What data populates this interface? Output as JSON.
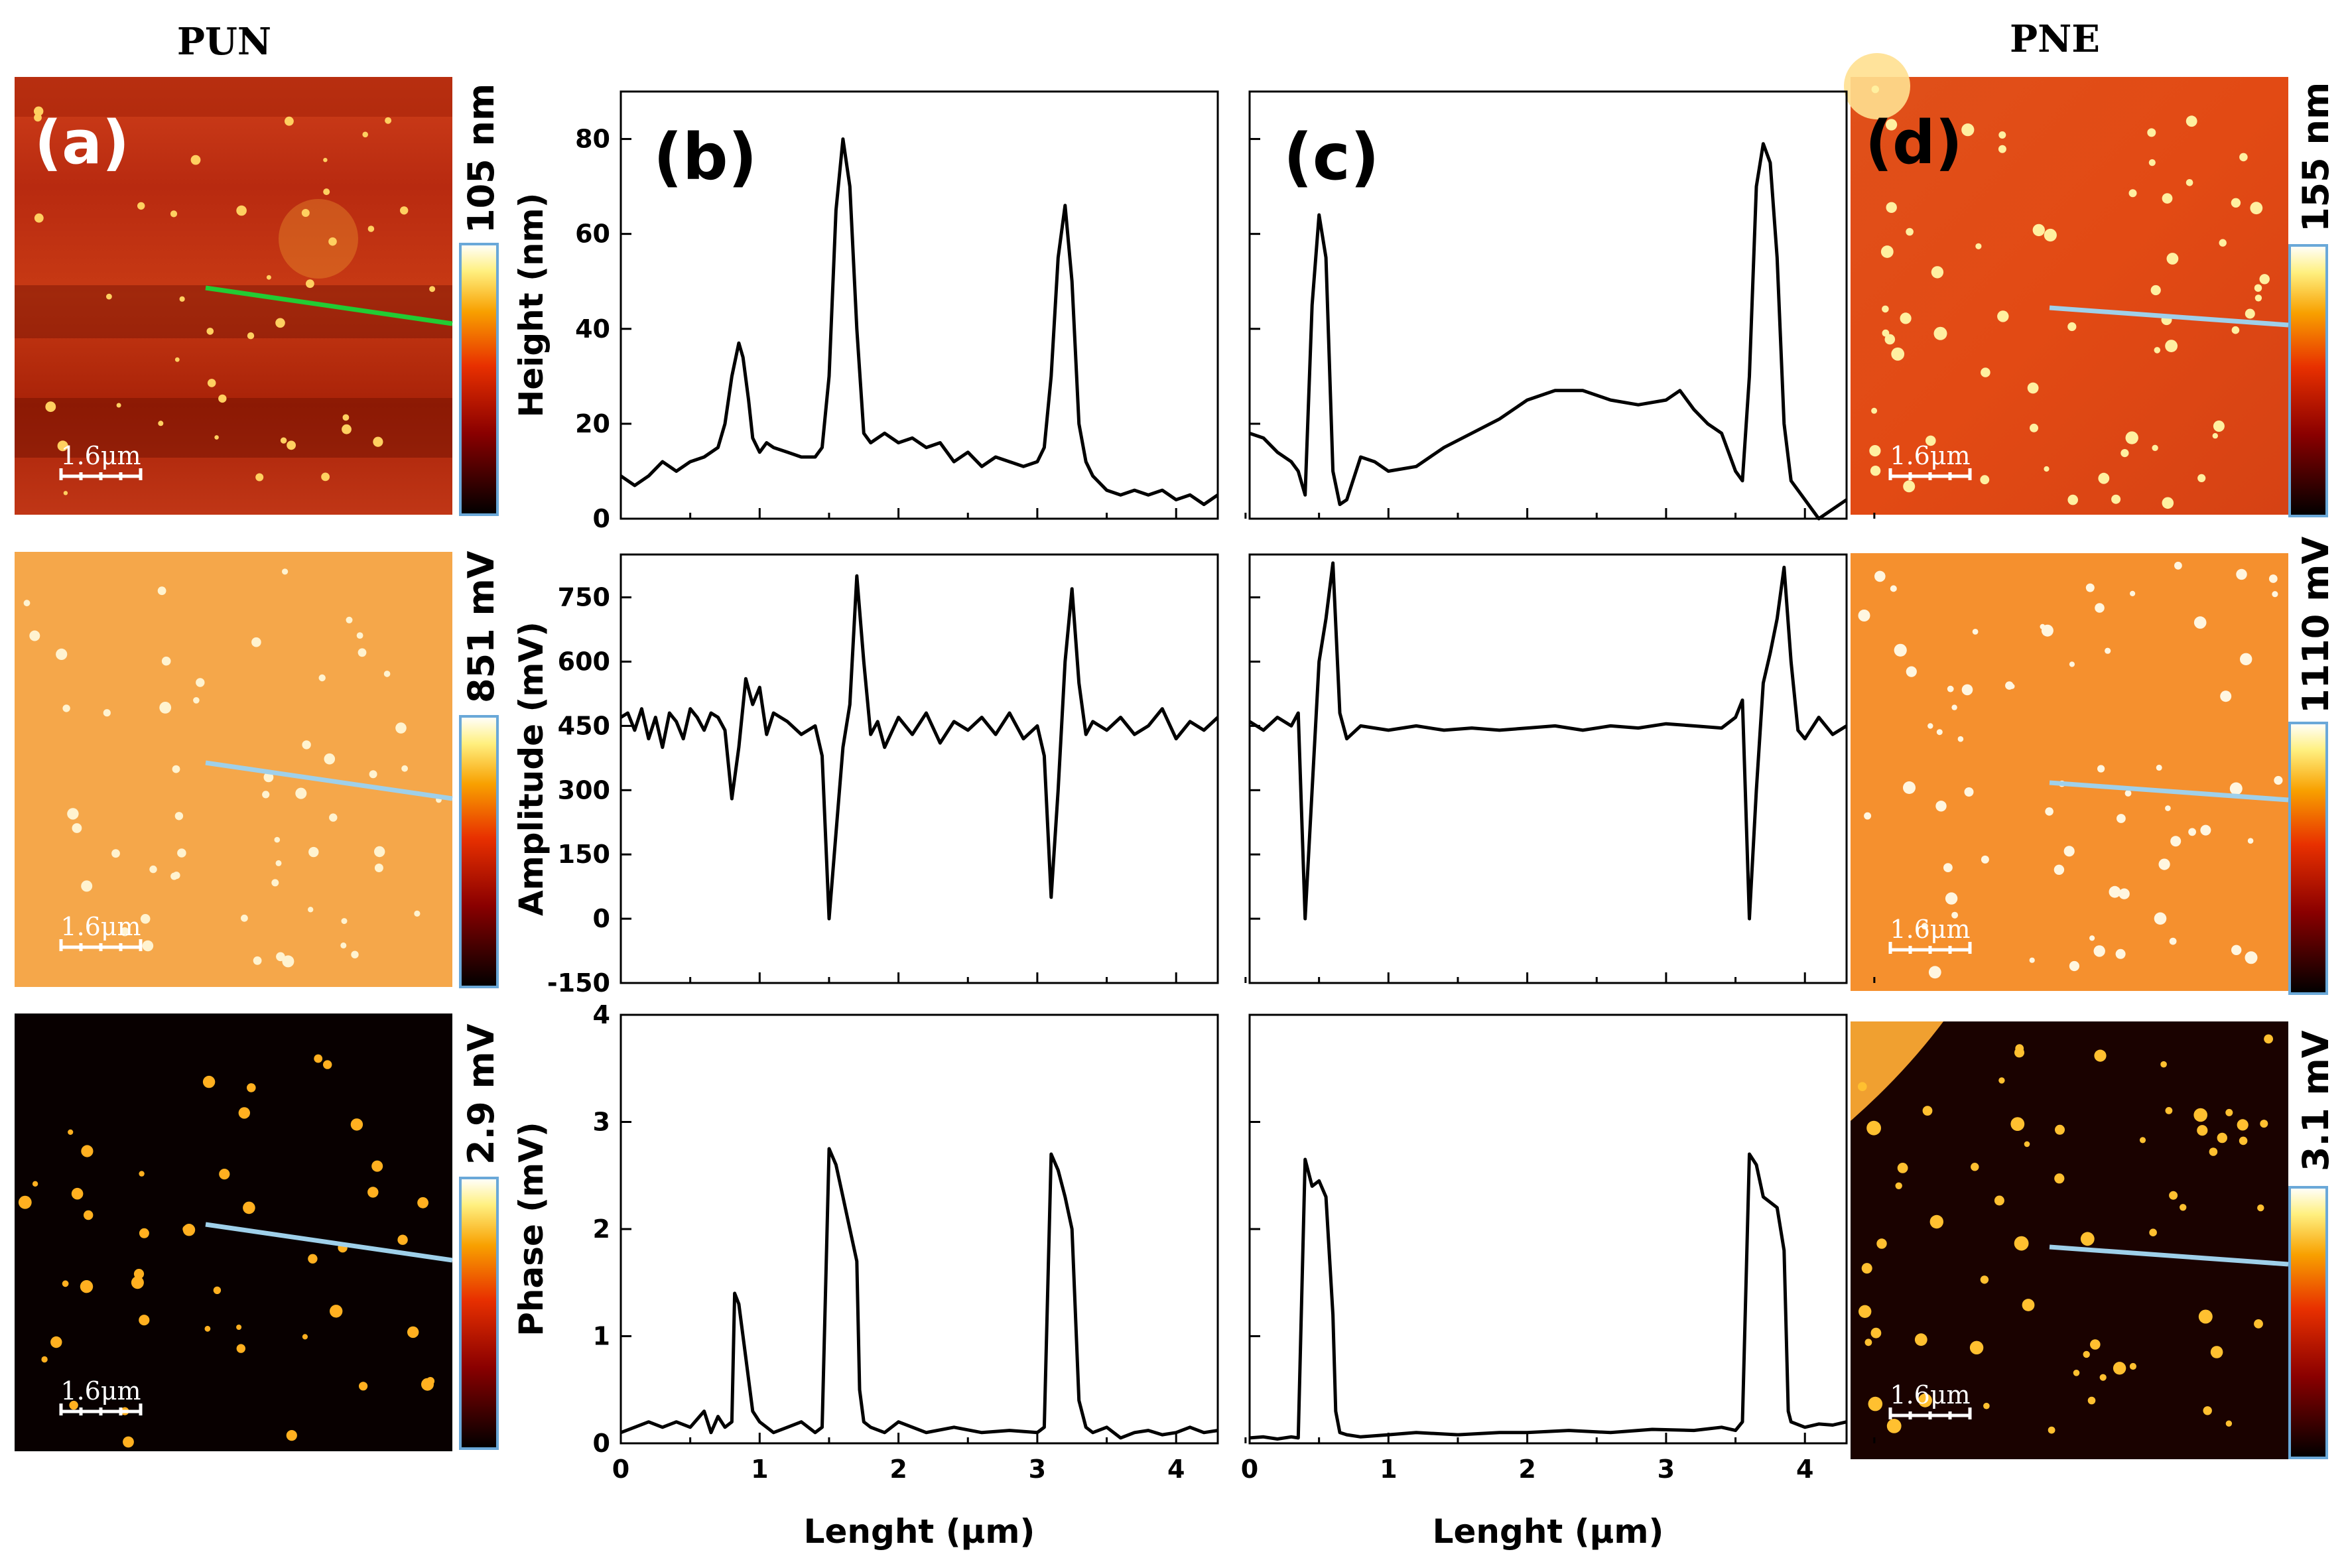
{
  "figure": {
    "pun_title": "PUN",
    "pne_title": "PNE"
  },
  "images": {
    "left": [
      {
        "panel_label": "(a)",
        "colorbar_label": "105 nm",
        "scale_bar": "1.6μm",
        "line_color": "#22cc33"
      },
      {
        "panel_label": "",
        "colorbar_label": "851 mV",
        "scale_bar": "1.6μm",
        "line_color": "#9fd0ea"
      },
      {
        "panel_label": "",
        "colorbar_label": "2.9 mV",
        "scale_bar": "1.6μm",
        "line_color": "#9fd0ea"
      }
    ],
    "right": [
      {
        "panel_label": "(d)",
        "colorbar_label": "155 nm",
        "scale_bar": "1.6μm",
        "line_color": "#9fd0ea"
      },
      {
        "panel_label": "",
        "colorbar_label": "1110 mV",
        "scale_bar": "1.6μm",
        "line_color": "#9fd0ea"
      },
      {
        "panel_label": "",
        "colorbar_label": "3.1 mV",
        "scale_bar": "1.6μm",
        "line_color": "#9fd0ea"
      }
    ]
  },
  "chart_data": [
    {
      "type": "line",
      "panel_label": "(b)",
      "title": "",
      "xlabel": "",
      "ylabel": "Height (nm)",
      "xlim": [
        0,
        4.3
      ],
      "ylim": [
        0,
        90
      ],
      "xticks": [
        0,
        1,
        2,
        3,
        4
      ],
      "yticks": [
        0,
        20,
        40,
        60,
        80
      ],
      "show_xtick_labels": false,
      "x": [
        0,
        0.1,
        0.2,
        0.3,
        0.4,
        0.5,
        0.6,
        0.7,
        0.75,
        0.8,
        0.85,
        0.88,
        0.92,
        0.95,
        1.0,
        1.05,
        1.1,
        1.2,
        1.3,
        1.4,
        1.45,
        1.5,
        1.55,
        1.6,
        1.65,
        1.7,
        1.75,
        1.8,
        1.9,
        2.0,
        2.1,
        2.2,
        2.3,
        2.4,
        2.5,
        2.6,
        2.7,
        2.8,
        2.9,
        3.0,
        3.05,
        3.1,
        3.15,
        3.2,
        3.25,
        3.3,
        3.35,
        3.4,
        3.5,
        3.6,
        3.7,
        3.8,
        3.9,
        4.0,
        4.1,
        4.2,
        4.3
      ],
      "y": [
        9,
        7,
        9,
        12,
        10,
        12,
        13,
        15,
        20,
        30,
        37,
        34,
        25,
        17,
        14,
        16,
        15,
        14,
        13,
        13,
        15,
        30,
        65,
        80,
        70,
        40,
        18,
        16,
        18,
        16,
        17,
        15,
        16,
        12,
        14,
        11,
        13,
        12,
        11,
        12,
        15,
        30,
        55,
        66,
        50,
        20,
        12,
        9,
        6,
        5,
        6,
        5,
        6,
        4,
        5,
        3,
        5
      ]
    },
    {
      "type": "line",
      "panel_label": "(c)",
      "title": "",
      "xlabel": "",
      "ylabel": "",
      "xlim": [
        0,
        4.3
      ],
      "ylim": [
        0,
        90
      ],
      "xticks": [
        0,
        1,
        2,
        3,
        4
      ],
      "yticks": [
        0,
        20,
        40,
        60,
        80
      ],
      "show_xtick_labels": false,
      "x": [
        0,
        0.1,
        0.2,
        0.3,
        0.35,
        0.4,
        0.45,
        0.5,
        0.55,
        0.6,
        0.65,
        0.7,
        0.8,
        0.9,
        1.0,
        1.2,
        1.4,
        1.6,
        1.8,
        2.0,
        2.2,
        2.4,
        2.6,
        2.8,
        3.0,
        3.1,
        3.2,
        3.3,
        3.4,
        3.5,
        3.55,
        3.6,
        3.65,
        3.7,
        3.75,
        3.8,
        3.85,
        3.9,
        4.0,
        4.1,
        4.2,
        4.3
      ],
      "y": [
        18,
        17,
        14,
        12,
        10,
        5,
        45,
        64,
        55,
        10,
        3,
        4,
        13,
        12,
        10,
        11,
        15,
        18,
        21,
        25,
        27,
        27,
        25,
        24,
        25,
        27,
        23,
        20,
        18,
        10,
        8,
        30,
        70,
        79,
        75,
        55,
        20,
        8,
        4,
        0,
        2,
        4
      ]
    },
    {
      "type": "line",
      "panel_label": "",
      "title": "",
      "xlabel": "",
      "ylabel": "Amplitude (mV)",
      "xlim": [
        0,
        4.3
      ],
      "ylim": [
        -150,
        850
      ],
      "xticks": [
        0,
        1,
        2,
        3,
        4
      ],
      "yticks": [
        -150,
        0,
        150,
        300,
        450,
        600,
        750
      ],
      "show_xtick_labels": false,
      "x": [
        0,
        0.05,
        0.1,
        0.15,
        0.2,
        0.25,
        0.3,
        0.35,
        0.4,
        0.45,
        0.5,
        0.55,
        0.6,
        0.65,
        0.7,
        0.75,
        0.8,
        0.85,
        0.9,
        0.95,
        1.0,
        1.05,
        1.1,
        1.2,
        1.3,
        1.4,
        1.45,
        1.5,
        1.55,
        1.6,
        1.65,
        1.7,
        1.75,
        1.8,
        1.85,
        1.9,
        2.0,
        2.1,
        2.2,
        2.3,
        2.4,
        2.5,
        2.6,
        2.7,
        2.8,
        2.9,
        3.0,
        3.05,
        3.1,
        3.15,
        3.2,
        3.25,
        3.3,
        3.35,
        3.4,
        3.5,
        3.6,
        3.7,
        3.8,
        3.9,
        4.0,
        4.1,
        4.2,
        4.3
      ],
      "y": [
        470,
        480,
        440,
        490,
        420,
        470,
        400,
        480,
        460,
        420,
        490,
        470,
        440,
        480,
        470,
        440,
        280,
        400,
        560,
        500,
        540,
        430,
        480,
        460,
        430,
        450,
        380,
        0,
        200,
        400,
        500,
        800,
        600,
        430,
        460,
        400,
        470,
        430,
        480,
        410,
        460,
        440,
        470,
        430,
        480,
        420,
        450,
        380,
        50,
        300,
        600,
        770,
        550,
        430,
        460,
        440,
        470,
        430,
        450,
        490,
        420,
        460,
        440,
        470
      ]
    },
    {
      "type": "line",
      "panel_label": "",
      "title": "",
      "xlabel": "",
      "ylabel": "",
      "xlim": [
        0,
        4.3
      ],
      "ylim": [
        -150,
        850
      ],
      "xticks": [
        0,
        1,
        2,
        3,
        4
      ],
      "yticks": [
        -150,
        0,
        150,
        300,
        450,
        600,
        750
      ],
      "show_xtick_labels": false,
      "x": [
        0,
        0.1,
        0.2,
        0.3,
        0.35,
        0.4,
        0.45,
        0.5,
        0.55,
        0.6,
        0.65,
        0.7,
        0.8,
        1.0,
        1.2,
        1.4,
        1.6,
        1.8,
        2.0,
        2.2,
        2.4,
        2.6,
        2.8,
        3.0,
        3.2,
        3.4,
        3.5,
        3.55,
        3.6,
        3.65,
        3.7,
        3.75,
        3.8,
        3.85,
        3.9,
        3.95,
        4.0,
        4.1,
        4.2,
        4.3
      ],
      "y": [
        460,
        440,
        470,
        450,
        480,
        0,
        300,
        600,
        700,
        830,
        480,
        420,
        450,
        440,
        450,
        440,
        445,
        440,
        445,
        450,
        440,
        450,
        445,
        455,
        450,
        445,
        470,
        510,
        0,
        300,
        550,
        620,
        700,
        820,
        600,
        440,
        420,
        470,
        430,
        450
      ]
    },
    {
      "type": "line",
      "panel_label": "",
      "title": "",
      "xlabel": "Lenght (μm)",
      "ylabel": "Phase (mV)",
      "xlim": [
        0,
        4.3
      ],
      "ylim": [
        0,
        4
      ],
      "xticks": [
        0,
        1,
        2,
        3,
        4
      ],
      "yticks": [
        0,
        1,
        2,
        3,
        4
      ],
      "show_xtick_labels": true,
      "x": [
        0,
        0.1,
        0.2,
        0.3,
        0.4,
        0.5,
        0.6,
        0.65,
        0.7,
        0.75,
        0.8,
        0.82,
        0.85,
        0.9,
        0.95,
        1.0,
        1.1,
        1.2,
        1.3,
        1.4,
        1.45,
        1.5,
        1.55,
        1.6,
        1.65,
        1.7,
        1.72,
        1.75,
        1.8,
        1.9,
        2.0,
        2.2,
        2.4,
        2.6,
        2.8,
        3.0,
        3.05,
        3.1,
        3.15,
        3.2,
        3.25,
        3.3,
        3.35,
        3.4,
        3.5,
        3.6,
        3.7,
        3.8,
        3.9,
        4.0,
        4.1,
        4.2,
        4.3
      ],
      "y": [
        0.1,
        0.15,
        0.2,
        0.15,
        0.2,
        0.15,
        0.3,
        0.1,
        0.25,
        0.15,
        0.2,
        1.4,
        1.3,
        0.8,
        0.3,
        0.2,
        0.1,
        0.15,
        0.2,
        0.1,
        0.15,
        2.75,
        2.6,
        2.3,
        2.0,
        1.7,
        0.5,
        0.2,
        0.15,
        0.1,
        0.2,
        0.1,
        0.15,
        0.1,
        0.12,
        0.1,
        0.15,
        2.7,
        2.55,
        2.3,
        2.0,
        0.4,
        0.15,
        0.1,
        0.15,
        0.05,
        0.1,
        0.12,
        0.08,
        0.1,
        0.15,
        0.1,
        0.12
      ]
    },
    {
      "type": "line",
      "panel_label": "",
      "title": "",
      "xlabel": "Lenght (μm)",
      "ylabel": "",
      "xlim": [
        0,
        4.3
      ],
      "ylim": [
        0,
        4
      ],
      "xticks": [
        0,
        1,
        2,
        3,
        4
      ],
      "yticks": [
        0,
        1,
        2,
        3,
        4
      ],
      "show_xtick_labels": true,
      "x": [
        0,
        0.1,
        0.2,
        0.3,
        0.35,
        0.4,
        0.45,
        0.5,
        0.55,
        0.6,
        0.62,
        0.65,
        0.7,
        0.8,
        1.0,
        1.2,
        1.5,
        1.8,
        2.0,
        2.3,
        2.6,
        2.9,
        3.2,
        3.4,
        3.5,
        3.55,
        3.6,
        3.65,
        3.7,
        3.75,
        3.8,
        3.85,
        3.88,
        3.9,
        4.0,
        4.1,
        4.2,
        4.3
      ],
      "y": [
        0.05,
        0.06,
        0.04,
        0.06,
        0.05,
        2.65,
        2.4,
        2.45,
        2.3,
        1.2,
        0.3,
        0.1,
        0.08,
        0.06,
        0.08,
        0.1,
        0.08,
        0.1,
        0.1,
        0.12,
        0.1,
        0.13,
        0.12,
        0.15,
        0.12,
        0.2,
        2.7,
        2.6,
        2.3,
        2.25,
        2.2,
        1.8,
        0.3,
        0.2,
        0.15,
        0.18,
        0.17,
        0.2
      ]
    }
  ]
}
